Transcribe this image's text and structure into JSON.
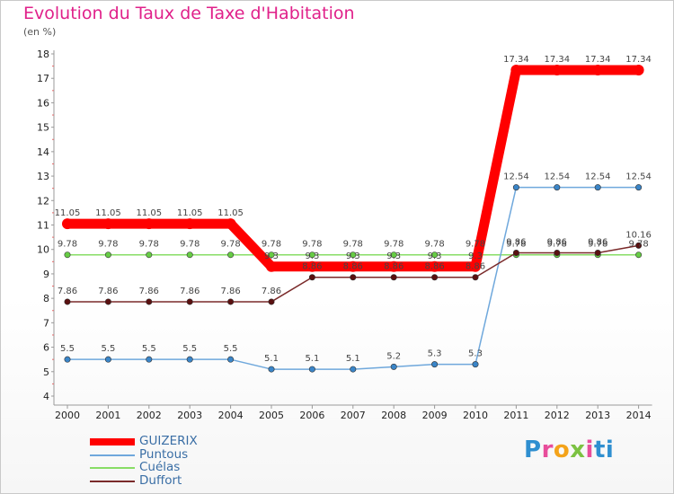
{
  "header": {
    "title": "Evolution du Taux de Taxe d'Habitation",
    "unit": "(en %)"
  },
  "logo": "Proxiti",
  "chart_data": {
    "type": "line",
    "title": "Evolution du Taux de Taxe d'Habitation",
    "ylabel": "(en %)",
    "xlabel": "",
    "x": [
      "2000",
      "2001",
      "2002",
      "2003",
      "2004",
      "2005",
      "2006",
      "2007",
      "2008",
      "2009",
      "2010",
      "2011",
      "2012",
      "2013",
      "2014"
    ],
    "ylim": [
      4,
      18
    ],
    "yticks": [
      4,
      5,
      6,
      7,
      8,
      9,
      10,
      11,
      12,
      13,
      14,
      15,
      16,
      17,
      18
    ],
    "grid": false,
    "legend": "bottom-left",
    "series": [
      {
        "name": "GUIZERIX",
        "color": "#ff0000",
        "marker_color": "#ff0000",
        "values": [
          11.05,
          11.05,
          11.05,
          11.05,
          11.05,
          9.3,
          9.3,
          9.3,
          9.3,
          9.3,
          9.3,
          17.34,
          17.34,
          17.34,
          17.34
        ],
        "labels": [
          "11.05",
          "11.05",
          "11.05",
          "11.05",
          "11.05",
          "9.3",
          "9.3",
          "9.3",
          "9.3",
          "9.3",
          "9.3",
          "17.34",
          "17.34",
          "17.34",
          "17.34"
        ]
      },
      {
        "name": "Puntous",
        "color": "#6fa8dc",
        "marker_color": "#3a85c8",
        "values": [
          5.5,
          5.5,
          5.5,
          5.5,
          5.5,
          5.1,
          5.1,
          5.1,
          5.2,
          5.3,
          5.3,
          12.54,
          12.54,
          12.54,
          12.54
        ],
        "labels": [
          "5.5",
          "5.5",
          "5.5",
          "5.5",
          "5.5",
          "5.1",
          "5.1",
          "5.1",
          "5.2",
          "5.3",
          "5.3",
          "12.54",
          "12.54",
          "12.54",
          "12.54"
        ]
      },
      {
        "name": "Cuélas",
        "color": "#88dd66",
        "marker_color": "#66cc44",
        "values": [
          9.78,
          9.78,
          9.78,
          9.78,
          9.78,
          9.78,
          9.78,
          9.78,
          9.78,
          9.78,
          9.78,
          9.78,
          9.78,
          9.78,
          9.78
        ],
        "labels": [
          "9.78",
          "9.78",
          "9.78",
          "9.78",
          "9.78",
          "9.78",
          "9.78",
          "9.78",
          "9.78",
          "9.78",
          "9.78",
          "9.78",
          "9.78",
          "9.78",
          "9.78"
        ]
      },
      {
        "name": "Duffort",
        "color": "#7a2a2a",
        "marker_color": "#5a1010",
        "values": [
          7.86,
          7.86,
          7.86,
          7.86,
          7.86,
          7.86,
          8.86,
          8.86,
          8.86,
          8.86,
          8.86,
          9.86,
          9.86,
          9.86,
          10.16
        ],
        "labels": [
          "7.86",
          "7.86",
          "7.86",
          "7.86",
          "7.86",
          "7.86",
          "8.86",
          "8.86",
          "8.86",
          "8.86",
          "8.86",
          "9.86",
          "9.86",
          "9.86",
          "10.16"
        ]
      }
    ]
  }
}
